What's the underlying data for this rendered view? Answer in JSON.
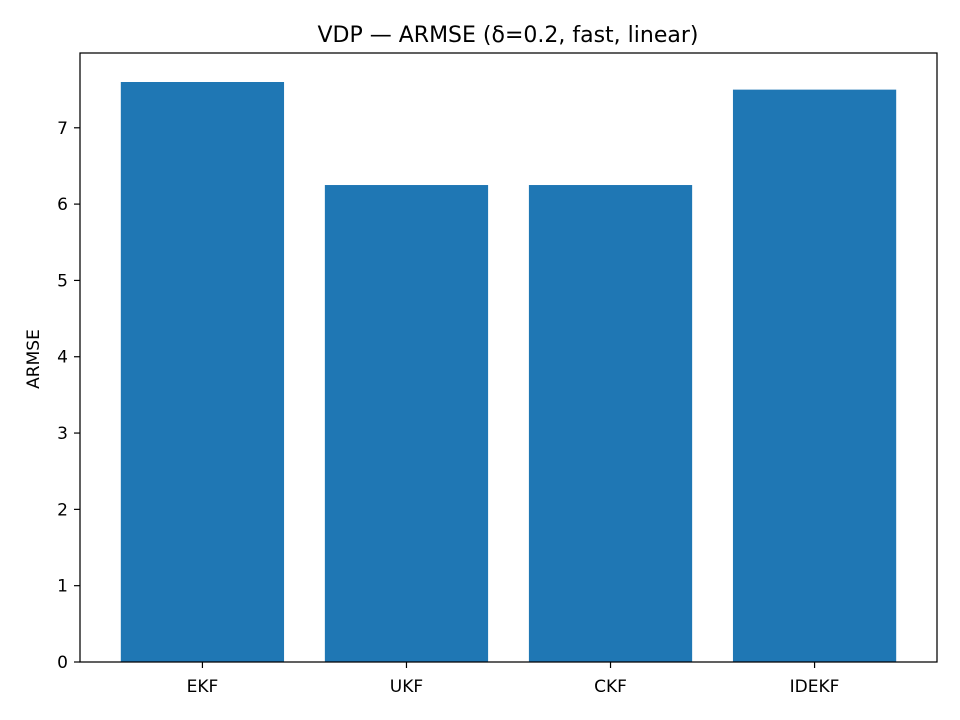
{
  "chart_data": {
    "type": "bar",
    "title": "VDP — ARMSE (δ=0.2, fast, linear)",
    "xlabel": "",
    "ylabel": "ARMSE",
    "categories": [
      "EKF",
      "UKF",
      "CKF",
      "IDEKF"
    ],
    "values": [
      7.6,
      6.25,
      6.25,
      7.5
    ],
    "ylim": [
      0,
      7.98
    ],
    "yticks": [
      0,
      1,
      2,
      3,
      4,
      5,
      6,
      7
    ],
    "bar_color": "#1f77b4",
    "grid": false,
    "legend": "none"
  }
}
